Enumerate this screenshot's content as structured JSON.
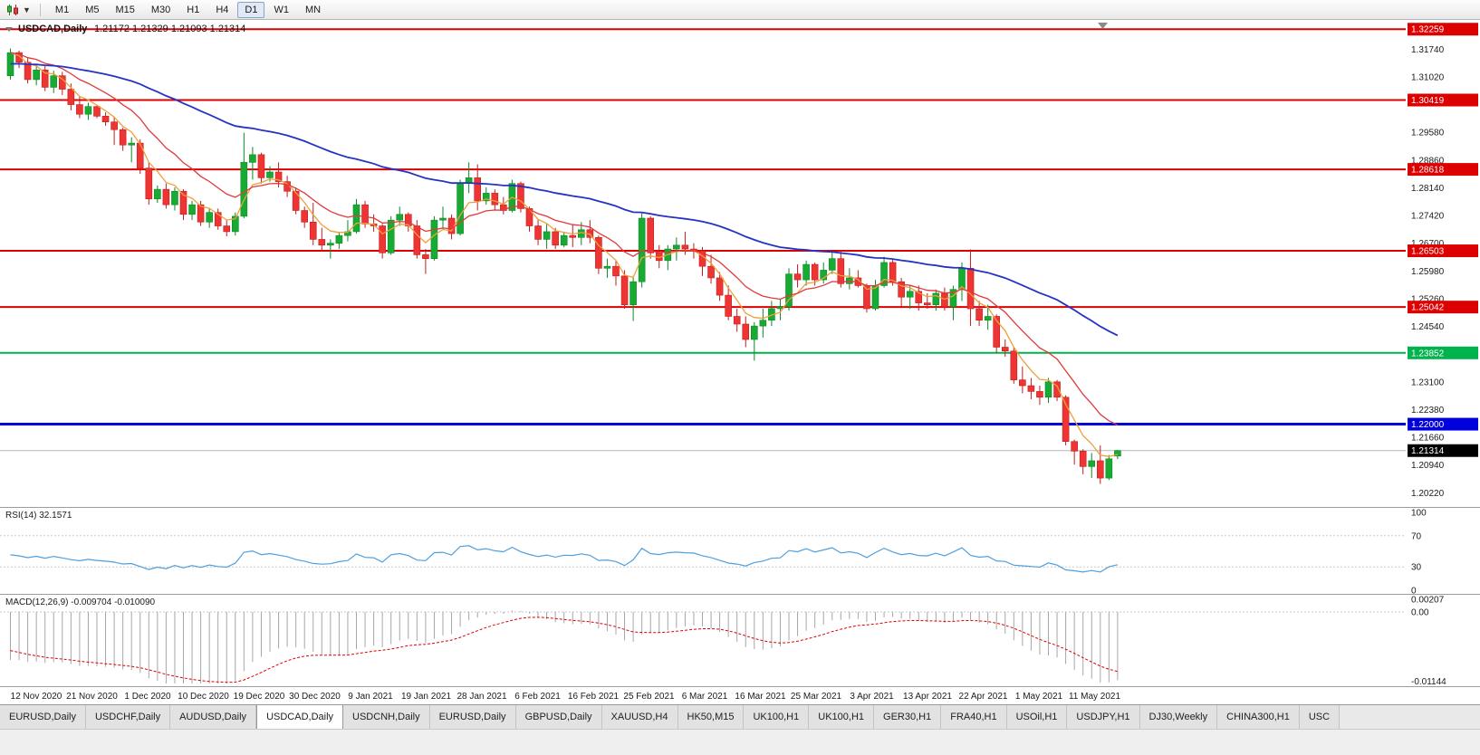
{
  "toolbar": {
    "timeframes": [
      "M1",
      "M5",
      "M15",
      "M30",
      "H1",
      "H4",
      "D1",
      "W1",
      "MN"
    ],
    "active_timeframe": "D1"
  },
  "tab_bar": {
    "active_index": 3,
    "tabs": [
      "EURUSD,Daily",
      "USDCHF,Daily",
      "AUDUSD,Daily",
      "USDCAD,Daily",
      "USDCNH,Daily",
      "EURUSD,Daily",
      "GBPUSD,Daily",
      "XAUUSD,H4",
      "HK50,M15",
      "UK100,H1",
      "UK100,H1",
      "GER30,H1",
      "FRA40,H1",
      "USOil,H1",
      "USDJPY,H1",
      "DJ30,Weekly",
      "CHINA300,H1",
      "USC"
    ]
  },
  "chart_data": {
    "type": "candlestick",
    "title": "USDCAD,Daily",
    "ohlc_display": [
      "1.21172",
      "1.21329",
      "1.21093",
      "1.21314"
    ],
    "x_labels": [
      "12 Nov 2020",
      "21 Nov 2020",
      "1 Dec 2020",
      "10 Dec 2020",
      "19 Dec 2020",
      "30 Dec 2020",
      "9 Jan 2021",
      "19 Jan 2021",
      "28 Jan 2021",
      "6 Feb 2021",
      "16 Feb 2021",
      "25 Feb 2021",
      "6 Mar 2021",
      "16 Mar 2021",
      "25 Mar 2021",
      "3 Apr 2021",
      "13 Apr 2021",
      "22 Apr 2021",
      "1 May 2021",
      "11 May 2021"
    ],
    "y_axis_labels": [
      "1.31740",
      "1.31020",
      "1.30300",
      "1.29580",
      "1.28860",
      "1.28140",
      "1.27420",
      "1.26700",
      "1.25980",
      "1.25260",
      "1.24540",
      "1.23820",
      "1.23100",
      "1.22380",
      "1.21660",
      "1.20940",
      "1.20220"
    ],
    "price_max": 1.325,
    "price_min": 1.1985,
    "colors": {
      "up": "#17ab33",
      "up_stroke": "#0e8726",
      "down": "#ef3434",
      "down_stroke": "#c11d1d",
      "background": "#ffffff",
      "axis_text": "#1a1a1a"
    },
    "candles": [
      [
        1.3105,
        1.3176,
        1.3095,
        1.3165
      ],
      [
        1.3165,
        1.317,
        1.3125,
        1.314
      ],
      [
        1.314,
        1.315,
        1.3085,
        1.3095
      ],
      [
        1.3095,
        1.3135,
        1.308,
        1.312
      ],
      [
        1.312,
        1.313,
        1.3065,
        1.3075
      ],
      [
        1.3075,
        1.3118,
        1.306,
        1.3105
      ],
      [
        1.3105,
        1.3115,
        1.3055,
        1.307
      ],
      [
        1.307,
        1.3085,
        1.3015,
        1.303
      ],
      [
        1.303,
        1.3052,
        1.2995,
        1.3005
      ],
      [
        1.3005,
        1.3035,
        1.299,
        1.3025
      ],
      [
        1.3025,
        1.303,
        1.2995,
        1.3
      ],
      [
        1.3,
        1.301,
        1.2975,
        1.2985
      ],
      [
        1.2985,
        1.2998,
        1.2925,
        1.2965
      ],
      [
        1.2965,
        1.297,
        1.291,
        1.2925
      ],
      [
        1.2925,
        1.2945,
        1.288,
        1.293
      ],
      [
        1.293,
        1.294,
        1.285,
        1.2865
      ],
      [
        1.2865,
        1.288,
        1.277,
        1.2785
      ],
      [
        1.2785,
        1.282,
        1.2775,
        1.281
      ],
      [
        1.281,
        1.2825,
        1.276,
        1.277
      ],
      [
        1.277,
        1.2815,
        1.2755,
        1.2805
      ],
      [
        1.2805,
        1.281,
        1.273,
        1.2745
      ],
      [
        1.2745,
        1.278,
        1.273,
        1.277
      ],
      [
        1.277,
        1.278,
        1.2715,
        1.2725
      ],
      [
        1.2725,
        1.276,
        1.271,
        1.275
      ],
      [
        1.275,
        1.276,
        1.2705,
        1.2715
      ],
      [
        1.2715,
        1.273,
        1.2688,
        1.27
      ],
      [
        1.27,
        1.275,
        1.269,
        1.274
      ],
      [
        1.274,
        1.2957,
        1.2735,
        1.288
      ],
      [
        1.288,
        1.292,
        1.2835,
        1.29
      ],
      [
        1.29,
        1.2905,
        1.2825,
        1.284
      ],
      [
        1.284,
        1.287,
        1.283,
        1.2855
      ],
      [
        1.2855,
        1.288,
        1.2815,
        1.283
      ],
      [
        1.283,
        1.2845,
        1.279,
        1.2805
      ],
      [
        1.2805,
        1.2815,
        1.2745,
        1.2755
      ],
      [
        1.2755,
        1.2765,
        1.271,
        1.2725
      ],
      [
        1.2725,
        1.2775,
        1.2665,
        1.268
      ],
      [
        1.268,
        1.271,
        1.265,
        1.2665
      ],
      [
        1.2665,
        1.268,
        1.263,
        1.267
      ],
      [
        1.267,
        1.27,
        1.2655,
        1.269
      ],
      [
        1.269,
        1.273,
        1.2675,
        1.27
      ],
      [
        1.27,
        1.2785,
        1.2695,
        1.277
      ],
      [
        1.277,
        1.278,
        1.271,
        1.272
      ],
      [
        1.272,
        1.2745,
        1.27,
        1.2715
      ],
      [
        1.2715,
        1.272,
        1.263,
        1.2645
      ],
      [
        1.2645,
        1.274,
        1.264,
        1.273
      ],
      [
        1.273,
        1.2765,
        1.2715,
        1.2745
      ],
      [
        1.2745,
        1.275,
        1.27,
        1.2715
      ],
      [
        1.2715,
        1.273,
        1.263,
        1.264
      ],
      [
        1.264,
        1.2655,
        1.259,
        1.263
      ],
      [
        1.263,
        1.274,
        1.2625,
        1.273
      ],
      [
        1.273,
        1.2765,
        1.2705,
        1.2735
      ],
      [
        1.2735,
        1.2745,
        1.268,
        1.2695
      ],
      [
        1.2695,
        1.2835,
        1.269,
        1.2825
      ],
      [
        1.2825,
        1.288,
        1.28,
        1.284
      ],
      [
        1.284,
        1.2875,
        1.2755,
        1.278
      ],
      [
        1.278,
        1.2815,
        1.277,
        1.28
      ],
      [
        1.28,
        1.281,
        1.2755,
        1.277
      ],
      [
        1.277,
        1.279,
        1.2745,
        1.2755
      ],
      [
        1.2755,
        1.2835,
        1.275,
        1.2825
      ],
      [
        1.2825,
        1.283,
        1.275,
        1.276
      ],
      [
        1.276,
        1.2765,
        1.27,
        1.2715
      ],
      [
        1.2715,
        1.273,
        1.2665,
        1.268
      ],
      [
        1.268,
        1.272,
        1.2655,
        1.27
      ],
      [
        1.27,
        1.271,
        1.2655,
        1.2665
      ],
      [
        1.2665,
        1.27,
        1.266,
        1.269
      ],
      [
        1.269,
        1.272,
        1.266,
        1.2685
      ],
      [
        1.2685,
        1.2725,
        1.2665,
        1.2705
      ],
      [
        1.2705,
        1.273,
        1.267,
        1.2685
      ],
      [
        1.2685,
        1.269,
        1.259,
        1.2605
      ],
      [
        1.2605,
        1.263,
        1.258,
        1.261
      ],
      [
        1.261,
        1.2625,
        1.256,
        1.2585
      ],
      [
        1.2585,
        1.26,
        1.25,
        1.251
      ],
      [
        1.251,
        1.2585,
        1.2468,
        1.257
      ],
      [
        1.257,
        1.275,
        1.2555,
        1.2735
      ],
      [
        1.2735,
        1.274,
        1.263,
        1.2645
      ],
      [
        1.2645,
        1.2665,
        1.2605,
        1.2625
      ],
      [
        1.2625,
        1.2665,
        1.26,
        1.2655
      ],
      [
        1.2655,
        1.2685,
        1.2625,
        1.2665
      ],
      [
        1.2665,
        1.27,
        1.264,
        1.2655
      ],
      [
        1.2655,
        1.267,
        1.263,
        1.265
      ],
      [
        1.265,
        1.266,
        1.2585,
        1.261
      ],
      [
        1.261,
        1.264,
        1.2565,
        1.258
      ],
      [
        1.258,
        1.2595,
        1.252,
        1.2535
      ],
      [
        1.2535,
        1.256,
        1.247,
        1.248
      ],
      [
        1.248,
        1.25,
        1.244,
        1.246
      ],
      [
        1.246,
        1.248,
        1.24,
        1.242
      ],
      [
        1.242,
        1.2465,
        1.2365,
        1.2455
      ],
      [
        1.2455,
        1.25,
        1.2425,
        1.247
      ],
      [
        1.247,
        1.252,
        1.2455,
        1.25
      ],
      [
        1.25,
        1.2525,
        1.247,
        1.2505
      ],
      [
        1.2505,
        1.2605,
        1.2495,
        1.259
      ],
      [
        1.259,
        1.2615,
        1.2555,
        1.2575
      ],
      [
        1.2575,
        1.2625,
        1.256,
        1.2615
      ],
      [
        1.2615,
        1.262,
        1.256,
        1.2575
      ],
      [
        1.2575,
        1.262,
        1.2565,
        1.26
      ],
      [
        1.26,
        1.265,
        1.259,
        1.263
      ],
      [
        1.263,
        1.265,
        1.2555,
        1.2565
      ],
      [
        1.2565,
        1.2605,
        1.255,
        1.258
      ],
      [
        1.258,
        1.26,
        1.2555,
        1.256
      ],
      [
        1.256,
        1.2565,
        1.249,
        1.25
      ],
      [
        1.25,
        1.2575,
        1.2495,
        1.256
      ],
      [
        1.256,
        1.2635,
        1.2555,
        1.262
      ],
      [
        1.262,
        1.263,
        1.256,
        1.257
      ],
      [
        1.257,
        1.258,
        1.2505,
        1.253
      ],
      [
        1.253,
        1.256,
        1.25,
        1.2545
      ],
      [
        1.2545,
        1.256,
        1.2495,
        1.2515
      ],
      [
        1.2515,
        1.254,
        1.25,
        1.251
      ],
      [
        1.251,
        1.255,
        1.2495,
        1.254
      ],
      [
        1.254,
        1.2555,
        1.2495,
        1.2505
      ],
      [
        1.2505,
        1.256,
        1.247,
        1.255
      ],
      [
        1.255,
        1.262,
        1.252,
        1.2605
      ],
      [
        1.2605,
        1.2654,
        1.2455,
        1.25
      ],
      [
        1.25,
        1.252,
        1.2455,
        1.247
      ],
      [
        1.247,
        1.251,
        1.2445,
        1.248
      ],
      [
        1.248,
        1.2485,
        1.2385,
        1.24
      ],
      [
        1.24,
        1.242,
        1.2375,
        1.239
      ],
      [
        1.239,
        1.24,
        1.2305,
        1.2315
      ],
      [
        1.2315,
        1.235,
        1.228,
        1.23
      ],
      [
        1.23,
        1.232,
        1.2265,
        1.2285
      ],
      [
        1.2285,
        1.23,
        1.225,
        1.227
      ],
      [
        1.227,
        1.232,
        1.2255,
        1.231
      ],
      [
        1.231,
        1.2315,
        1.226,
        1.227
      ],
      [
        1.227,
        1.2275,
        1.2145,
        1.2155
      ],
      [
        1.2155,
        1.216,
        1.2095,
        1.213
      ],
      [
        1.213,
        1.2135,
        1.207,
        1.209
      ],
      [
        1.209,
        1.2125,
        1.206,
        1.2105
      ],
      [
        1.2105,
        1.2145,
        1.2045,
        1.206
      ],
      [
        1.206,
        1.212,
        1.2055,
        1.211
      ],
      [
        1.21172,
        1.21329,
        1.21093,
        1.21314
      ]
    ],
    "moving_averages": [
      {
        "name": "fast",
        "period": 5,
        "color": "#efa03a",
        "seed": null
      },
      {
        "name": "mid",
        "period": 13,
        "color": "#e03a3a",
        "seed": null
      },
      {
        "name": "slow",
        "period": 55,
        "color": "#2433c4",
        "seed": 1.3135
      }
    ],
    "hlines": [
      {
        "price": 1.32259,
        "label": "1.32259",
        "color": "#dd0000",
        "width": 2
      },
      {
        "price": 1.30419,
        "label": "1.30419",
        "color": "#dd0000",
        "width": 2
      },
      {
        "price": 1.28618,
        "label": "1.28618",
        "color": "#dd0000",
        "width": 2
      },
      {
        "price": 1.26503,
        "label": "1.26503",
        "color": "#dd0000",
        "width": 2
      },
      {
        "price": 1.25042,
        "label": "1.25042",
        "color": "#dd0000",
        "width": 2
      },
      {
        "price": 1.23852,
        "label": "1.23852",
        "color": "#00b34d",
        "width": 2
      },
      {
        "price": 1.22,
        "label": "1.22000",
        "color": "#0000dd",
        "width": 3
      }
    ],
    "bid_line": {
      "price": 1.21314,
      "label": "1.21314",
      "badge_color": "#000000",
      "line_color": "#b8b8b8"
    },
    "rsi": {
      "label": "RSI(14) 32.1571",
      "period": 14,
      "levels": [
        "100",
        "70",
        "30",
        "0"
      ],
      "level_values": [
        100,
        70,
        30,
        0
      ],
      "color": "#4f9fdd",
      "seed_gain": 0.003,
      "seed_loss": 0.0036
    },
    "macd": {
      "label": "MACD(12,26,9) -0.009704 -0.010090",
      "axis_labels": [
        "0.00207",
        "0.00",
        "-0.01144"
      ],
      "axis_values": [
        0.00207,
        0,
        -0.01144
      ],
      "hist_color": "#a6a6a6",
      "signal_color": "#dd0000",
      "seed_fast": 1.323,
      "seed_slow": 1.331,
      "seed_signal": -0.006
    }
  }
}
